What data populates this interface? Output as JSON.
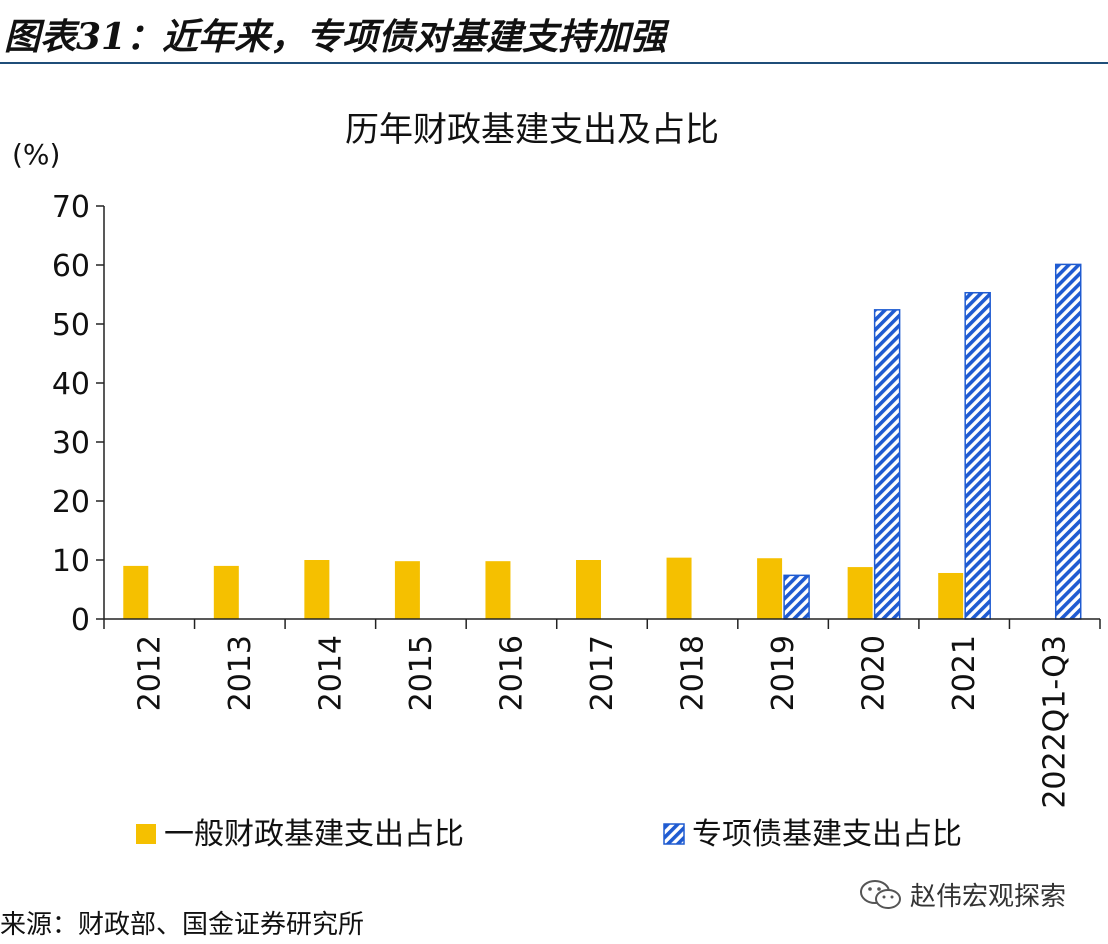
{
  "figure": {
    "title": "图表31：近年来，专项债对基建支持加强"
  },
  "chart_data": {
    "type": "bar",
    "title": "历年财政基建支出及占比",
    "ylabel": "(%)",
    "xlabel": "",
    "ylim": [
      0,
      70
    ],
    "yticks": [
      0,
      10,
      20,
      30,
      40,
      50,
      60,
      70
    ],
    "ytick_labels": [
      "0",
      "10",
      "20",
      "30",
      "40",
      "50",
      "60",
      "70"
    ],
    "grid": false,
    "legend_position": "bottom",
    "categories": [
      "2012",
      "2013",
      "2014",
      "2015",
      "2016",
      "2017",
      "2018",
      "2019",
      "2020",
      "2021",
      "2022Q1-Q3"
    ],
    "series": [
      {
        "name": "一般财政基建支出占比",
        "color": "#f5c000",
        "pattern": "solid",
        "values": [
          9.0,
          9.0,
          10.0,
          9.8,
          9.8,
          10.0,
          10.4,
          10.3,
          8.8,
          7.8,
          null
        ]
      },
      {
        "name": "专项债基建支出占比",
        "color": "#1f5bd1",
        "pattern": "diagonal-hatch",
        "values": [
          null,
          null,
          null,
          null,
          null,
          null,
          null,
          7.4,
          52.4,
          55.3,
          60.1
        ]
      }
    ]
  },
  "footer": {
    "source": "来源：财政部、国金证券研究所",
    "watermark_icon": "wechat-icon",
    "watermark": "赵伟宏观探索"
  }
}
